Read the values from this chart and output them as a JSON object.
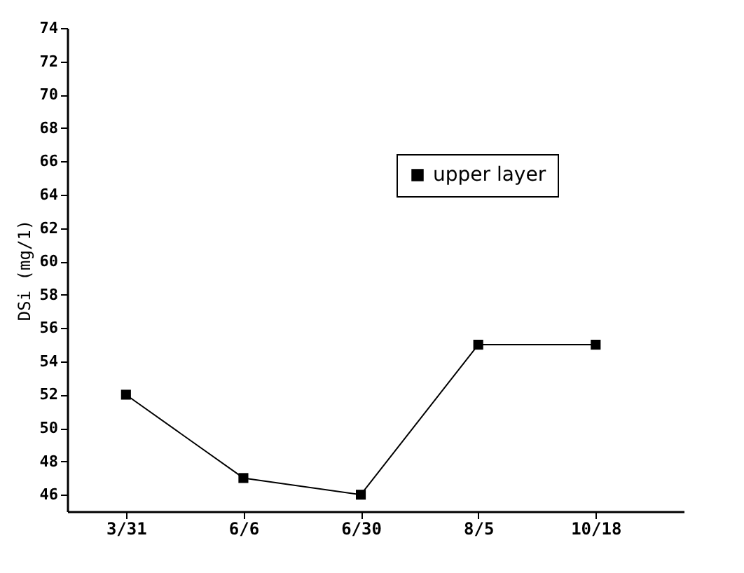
{
  "chart_data": {
    "type": "line",
    "ylabel": "DSi (mg/1)",
    "categories": [
      "3/31",
      "6/6",
      "6/30",
      "8/5",
      "10/18"
    ],
    "series": [
      {
        "name": "upper layer",
        "color": "#000000",
        "values": [
          52,
          47,
          46,
          55,
          55
        ]
      }
    ],
    "ylim": [
      45,
      74
    ],
    "yticks": [
      46,
      48,
      50,
      52,
      54,
      56,
      58,
      60,
      62,
      64,
      66,
      68,
      70,
      72,
      74
    ],
    "marker": "square",
    "line_style": "solid",
    "legend": "top right",
    "grid": false
  }
}
